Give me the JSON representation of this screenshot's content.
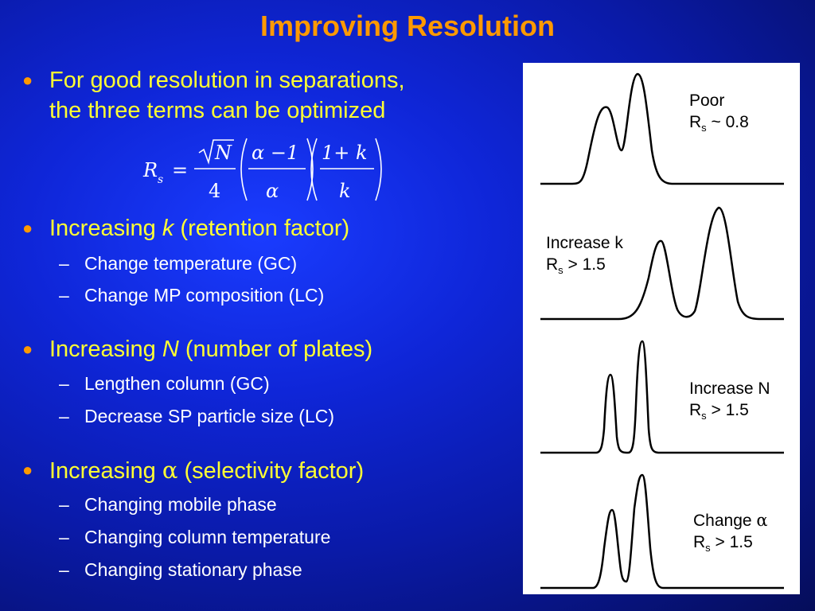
{
  "title": "Improving Resolution",
  "bullets": [
    {
      "line1": "For good resolution in separations,",
      "line2": "the three terms can be optimized"
    },
    {
      "pre": "Increasing ",
      "var": "k",
      "post": " (retention factor)",
      "subs": [
        "Change temperature (GC)",
        "Change MP composition (LC)"
      ]
    },
    {
      "pre": "Increasing ",
      "var": "N",
      "post": " (number of plates)",
      "subs": [
        "Lengthen column (GC)",
        "Decrease SP particle size (LC)"
      ]
    },
    {
      "pre": "Increasing ",
      "var": "α",
      "post": " (selectivity factor)",
      "subs": [
        "Changing mobile phase",
        "Changing column temperature",
        "Changing stationary phase"
      ]
    }
  ],
  "dash": "–",
  "formula": {
    "lhs": "R",
    "lhs_sub": "s",
    "eq": "=",
    "sqrt_arg": "N",
    "den1": "4",
    "num2": "α −1",
    "den2": "α",
    "num3": "1+ k",
    "den3": "k"
  },
  "panel_labels": [
    {
      "line1": "Poor",
      "r": "R",
      "s": "s",
      "rest": " ~ 0.8"
    },
    {
      "line1": "Increase k",
      "r": "R",
      "s": "s",
      "rest": " > 1.5"
    },
    {
      "line1": "Increase N",
      "r": "R",
      "s": "s",
      "rest": " > 1.5"
    },
    {
      "line1_pre": "Change ",
      "line1_sym": "α",
      "r": "R",
      "s": "s",
      "rest": " > 1.5"
    }
  ],
  "colors": {
    "title": "#ff9900",
    "bullet_text": "#ffff33",
    "sub_text": "#ffffff",
    "bullet_dot": "#ff9900",
    "background": "#0f26d8"
  }
}
